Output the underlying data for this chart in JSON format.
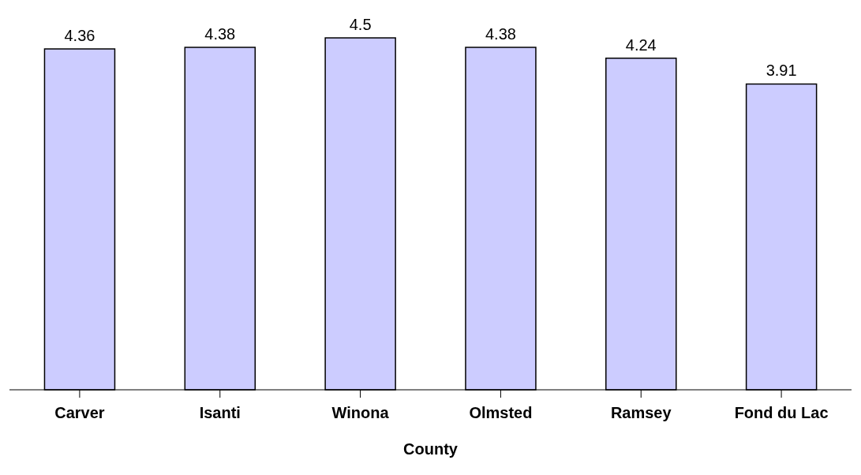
{
  "chart_data": {
    "type": "bar",
    "xlabel": "County",
    "categories": [
      "Carver",
      "Isanti",
      "Winona",
      "Olmsted",
      "Ramsey",
      "Fond du Lac"
    ],
    "values": [
      4.36,
      4.38,
      4.5,
      4.38,
      4.24,
      3.91
    ],
    "color": "#ccccff",
    "data_labels": true
  }
}
